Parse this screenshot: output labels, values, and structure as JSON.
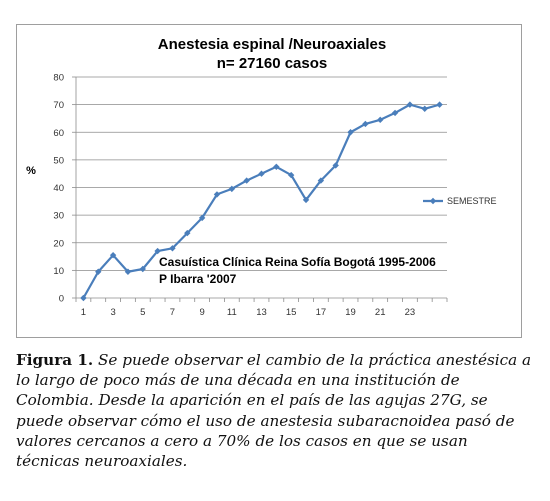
{
  "chart_data": {
    "type": "line",
    "title_lines": [
      "Anestesia espinal /Neuroaxiales",
      "n= 27160 casos"
    ],
    "ylabel": "%",
    "xlabel": "",
    "ylim": [
      0,
      80
    ],
    "yticks": [
      0,
      10,
      20,
      30,
      40,
      50,
      60,
      70,
      80
    ],
    "xticks": [
      1,
      3,
      5,
      7,
      9,
      11,
      13,
      15,
      17,
      19,
      21,
      23
    ],
    "x_count": 25,
    "grid": "horizontal",
    "legend_position": "right",
    "series": [
      {
        "name": "SEMESTRE",
        "color": "#4a7ebb",
        "x": [
          1,
          2,
          3,
          4,
          5,
          6,
          7,
          8,
          9,
          10,
          11,
          12,
          13,
          14,
          15,
          16,
          17,
          18,
          19,
          20,
          21,
          22,
          23,
          24,
          25
        ],
        "values": [
          0,
          9.5,
          15.5,
          9.5,
          10.5,
          17,
          18,
          23.5,
          29,
          37.5,
          39.5,
          42.5,
          45,
          47.5,
          44.5,
          35.5,
          42.5,
          48,
          60,
          63,
          64.5,
          67,
          70,
          68.5,
          70
        ]
      }
    ],
    "annotations": [
      "Casuística Clínica Reina Sofía Bogotá 1995-2006",
      "P Ibarra '2007"
    ]
  },
  "caption": {
    "label": "Figura 1.",
    "text": "Se puede observar el cambio de la práctica anestésica a lo largo de poco más de una década en una institución de Colombia. Desde la aparición en el país de las agujas 27G, se puede observar cómo el uso de anestesia subaracnoidea pasó de valores cercanos a cero a 70% de los casos en que se usan técnicas neuroaxiales."
  }
}
